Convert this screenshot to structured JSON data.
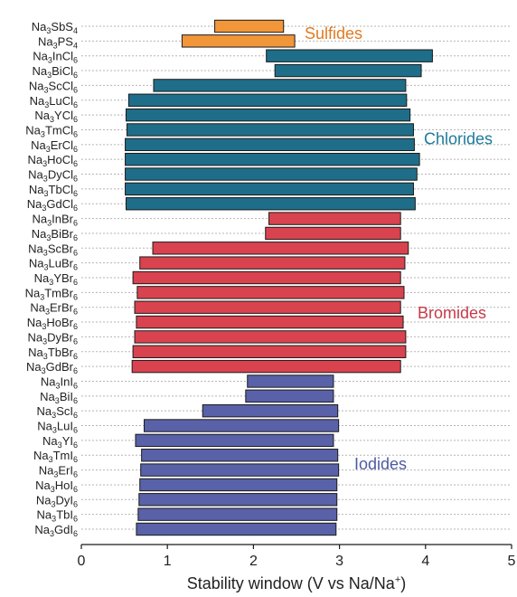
{
  "chart_data": {
    "type": "bar",
    "orientation": "horizontal-floating",
    "title": "",
    "xlabel": {
      "prefix": "Stability window (V vs Na/Na",
      "sup": "+",
      "suffix": ")"
    },
    "ylabel": "",
    "xlim": [
      0,
      5
    ],
    "xticks": [
      0,
      1,
      2,
      3,
      4,
      5
    ],
    "grid": "horizontal dotted",
    "group_colors": {
      "Sulfides": "#F2963A",
      "Chlorides": "#1F6E89",
      "Bromides": "#D9434F",
      "Iodides": "#5961A8"
    },
    "label_colors": {
      "Sulfides": "#E07B22",
      "Chlorides": "#1F7A9B",
      "Bromides": "#C53A4A",
      "Iodides": "#4E5BA3"
    },
    "groups": [
      {
        "name": "Sulfides"
      },
      {
        "name": "Chlorides"
      },
      {
        "name": "Bromides"
      },
      {
        "name": "Iodides"
      }
    ],
    "bars": [
      {
        "label": [
          "Na",
          "3",
          "SbS",
          "4"
        ],
        "group": "Sulfides",
        "low": 1.55,
        "high": 2.35
      },
      {
        "label": [
          "Na",
          "3",
          "PS",
          "4"
        ],
        "group": "Sulfides",
        "low": 1.17,
        "high": 2.48
      },
      {
        "label": [
          "Na",
          "3",
          "InCl",
          "6"
        ],
        "group": "Chlorides",
        "low": 2.15,
        "high": 4.08
      },
      {
        "label": [
          "Na",
          "3",
          "BiCl",
          "6"
        ],
        "group": "Chlorides",
        "low": 2.25,
        "high": 3.95
      },
      {
        "label": [
          "Na",
          "3",
          "ScCl",
          "6"
        ],
        "group": "Chlorides",
        "low": 0.84,
        "high": 3.77
      },
      {
        "label": [
          "Na",
          "3",
          "LuCl",
          "6"
        ],
        "group": "Chlorides",
        "low": 0.55,
        "high": 3.78
      },
      {
        "label": [
          "Na",
          "3",
          "YCl",
          "6"
        ],
        "group": "Chlorides",
        "low": 0.52,
        "high": 3.82
      },
      {
        "label": [
          "Na",
          "3",
          "TmCl",
          "6"
        ],
        "group": "Chlorides",
        "low": 0.53,
        "high": 3.86
      },
      {
        "label": [
          "Na",
          "3",
          "ErCl",
          "6"
        ],
        "group": "Chlorides",
        "low": 0.51,
        "high": 3.87
      },
      {
        "label": [
          "Na",
          "3",
          "HoCl",
          "6"
        ],
        "group": "Chlorides",
        "low": 0.51,
        "high": 3.93
      },
      {
        "label": [
          "Na",
          "3",
          "DyCl",
          "6"
        ],
        "group": "Chlorides",
        "low": 0.51,
        "high": 3.9
      },
      {
        "label": [
          "Na",
          "3",
          "TbCl",
          "6"
        ],
        "group": "Chlorides",
        "low": 0.51,
        "high": 3.86
      },
      {
        "label": [
          "Na",
          "3",
          "GdCl",
          "6"
        ],
        "group": "Chlorides",
        "low": 0.52,
        "high": 3.88
      },
      {
        "label": [
          "Na",
          "3",
          "InBr",
          "6"
        ],
        "group": "Bromides",
        "low": 2.18,
        "high": 3.71
      },
      {
        "label": [
          "Na",
          "3",
          "BiBr",
          "6"
        ],
        "group": "Bromides",
        "low": 2.14,
        "high": 3.71
      },
      {
        "label": [
          "Na",
          "3",
          "ScBr",
          "6"
        ],
        "group": "Bromides",
        "low": 0.83,
        "high": 3.8
      },
      {
        "label": [
          "Na",
          "3",
          "LuBr",
          "6"
        ],
        "group": "Bromides",
        "low": 0.68,
        "high": 3.76
      },
      {
        "label": [
          "Na",
          "3",
          "YBr",
          "6"
        ],
        "group": "Bromides",
        "low": 0.6,
        "high": 3.71
      },
      {
        "label": [
          "Na",
          "3",
          "TmBr",
          "6"
        ],
        "group": "Bromides",
        "low": 0.65,
        "high": 3.75
      },
      {
        "label": [
          "Na",
          "3",
          "ErBr",
          "6"
        ],
        "group": "Bromides",
        "low": 0.62,
        "high": 3.71
      },
      {
        "label": [
          "Na",
          "3",
          "HoBr",
          "6"
        ],
        "group": "Bromides",
        "low": 0.64,
        "high": 3.74
      },
      {
        "label": [
          "Na",
          "3",
          "DyBr",
          "6"
        ],
        "group": "Bromides",
        "low": 0.62,
        "high": 3.77
      },
      {
        "label": [
          "Na",
          "3",
          "TbBr",
          "6"
        ],
        "group": "Bromides",
        "low": 0.6,
        "high": 3.77
      },
      {
        "label": [
          "Na",
          "3",
          "GdBr",
          "6"
        ],
        "group": "Bromides",
        "low": 0.59,
        "high": 3.71
      },
      {
        "label": [
          "Na",
          "3",
          "InI",
          "6"
        ],
        "group": "Iodides",
        "low": 1.93,
        "high": 2.93
      },
      {
        "label": [
          "Na",
          "3",
          "BiI",
          "6"
        ],
        "group": "Iodides",
        "low": 1.91,
        "high": 2.93
      },
      {
        "label": [
          "Na",
          "3",
          "ScI",
          "6"
        ],
        "group": "Iodides",
        "low": 1.41,
        "high": 2.98
      },
      {
        "label": [
          "Na",
          "3",
          "LuI",
          "6"
        ],
        "group": "Iodides",
        "low": 0.73,
        "high": 2.99
      },
      {
        "label": [
          "Na",
          "3",
          "YI",
          "6"
        ],
        "group": "Iodides",
        "low": 0.63,
        "high": 2.93
      },
      {
        "label": [
          "Na",
          "3",
          "TmI",
          "6"
        ],
        "group": "Iodides",
        "low": 0.7,
        "high": 2.98
      },
      {
        "label": [
          "Na",
          "3",
          "ErI",
          "6"
        ],
        "group": "Iodides",
        "low": 0.69,
        "high": 2.99
      },
      {
        "label": [
          "Na",
          "3",
          "HoI",
          "6"
        ],
        "group": "Iodides",
        "low": 0.68,
        "high": 2.97
      },
      {
        "label": [
          "Na",
          "3",
          "DyI",
          "6"
        ],
        "group": "Iodides",
        "low": 0.67,
        "high": 2.97
      },
      {
        "label": [
          "Na",
          "3",
          "TbI",
          "6"
        ],
        "group": "Iodides",
        "low": 0.66,
        "high": 2.97
      },
      {
        "label": [
          "Na",
          "3",
          "GdI",
          "6"
        ],
        "group": "Iodides",
        "low": 0.64,
        "high": 2.96
      }
    ]
  }
}
